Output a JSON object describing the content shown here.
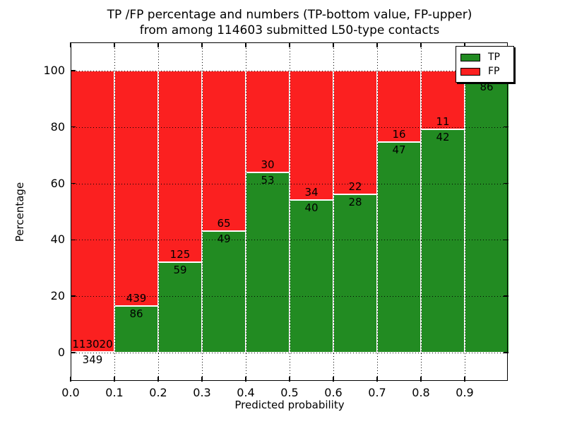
{
  "figure": {
    "title_line1": "TP /FP percentage and numbers (TP-bottom value, FP-upper)",
    "title_line2": "from among 114603 submitted L50-type contacts"
  },
  "chart_data": {
    "type": "bar",
    "subtype": "stacked-percentage",
    "title": "TP /FP percentage and numbers (TP-bottom value, FP-upper)\nfrom among 114603 submitted L50-type contacts",
    "xlabel": "Predicted probability",
    "ylabel": "Percentage",
    "xlim": [
      0.0,
      1.0
    ],
    "ylim": [
      -10.3,
      110
    ],
    "grid": true,
    "x_ticks": [
      0.0,
      0.1,
      0.2,
      0.3,
      0.4,
      0.5,
      0.6,
      0.7,
      0.8,
      0.9
    ],
    "x_tick_labels": [
      "0.0",
      "0.1",
      "0.2",
      "0.3",
      "0.4",
      "0.5",
      "0.6",
      "0.7",
      "0.8",
      "0.9"
    ],
    "y_ticks": [
      0,
      20,
      40,
      60,
      80,
      100
    ],
    "y_tick_labels": [
      "0",
      "20",
      "40",
      "60",
      "80",
      "100"
    ],
    "legend": {
      "position": "upper right",
      "entries": [
        {
          "label": "TP",
          "color": "#228b22"
        },
        {
          "label": "FP",
          "color": "#fb2020"
        }
      ]
    },
    "bins": [
      {
        "x_range": [
          0.0,
          0.1
        ],
        "tp": 349,
        "fp": 113020,
        "tp_pct": 0.31
      },
      {
        "x_range": [
          0.1,
          0.2
        ],
        "tp": 86,
        "fp": 439,
        "tp_pct": 16.4
      },
      {
        "x_range": [
          0.2,
          0.3
        ],
        "tp": 59,
        "fp": 125,
        "tp_pct": 32.1
      },
      {
        "x_range": [
          0.3,
          0.4
        ],
        "tp": 49,
        "fp": 65,
        "tp_pct": 43.0
      },
      {
        "x_range": [
          0.4,
          0.5
        ],
        "tp": 53,
        "fp": 30,
        "tp_pct": 63.9
      },
      {
        "x_range": [
          0.5,
          0.6
        ],
        "tp": 40,
        "fp": 34,
        "tp_pct": 54.1
      },
      {
        "x_range": [
          0.6,
          0.7
        ],
        "tp": 28,
        "fp": 22,
        "tp_pct": 56.0
      },
      {
        "x_range": [
          0.7,
          0.8
        ],
        "tp": 47,
        "fp": 16,
        "tp_pct": 74.6
      },
      {
        "x_range": [
          0.8,
          0.9
        ],
        "tp": 42,
        "fp": 11,
        "tp_pct": 79.2
      },
      {
        "x_range": [
          0.9,
          1.0
        ],
        "tp": 86,
        "fp": null,
        "tp_pct": 97.0,
        "fp_label_hidden": true
      }
    ],
    "colors": {
      "tp": "#228b22",
      "fp": "#fb2020",
      "grid": "#000000",
      "background": "#ffffff",
      "text": "#000000"
    }
  }
}
